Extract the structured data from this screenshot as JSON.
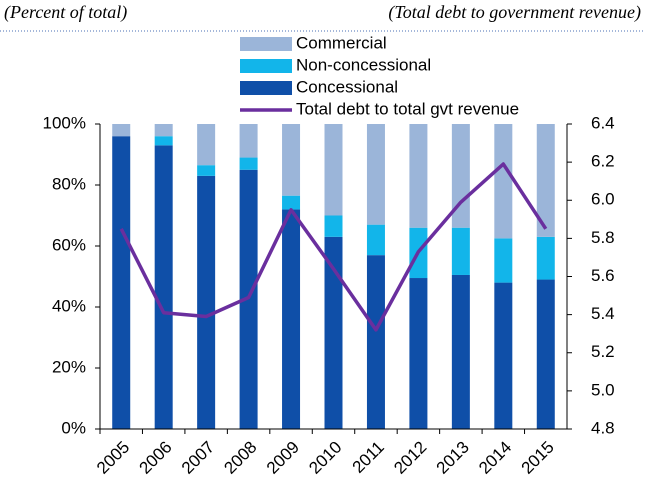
{
  "chart_data": {
    "type": "bar",
    "stacked": true,
    "left_axis_label": "(Percent of total)",
    "right_axis_label": "(Total debt to government revenue)",
    "categories": [
      "2005",
      "2006",
      "2007",
      "2008",
      "2009",
      "2010",
      "2011",
      "2012",
      "2013",
      "2014",
      "2015"
    ],
    "series": [
      {
        "name": "Commercial",
        "color": "#9bb5d9",
        "values": [
          4,
          4,
          13.5,
          11,
          23.5,
          30,
          33,
          34,
          34,
          37.5,
          37
        ]
      },
      {
        "name": "Non-concessional",
        "color": "#12b5ea",
        "values": [
          0,
          3,
          3.5,
          4,
          4.5,
          7,
          10,
          16.5,
          15.5,
          14.5,
          14
        ]
      },
      {
        "name": "Concessional",
        "color": "#0f4fa8",
        "values": [
          96,
          93,
          83,
          85,
          72,
          63,
          57,
          49.5,
          50.5,
          48,
          49
        ]
      },
      {
        "name": "Total debt to total gvt revenue",
        "color": "#6a2f9e",
        "type": "line",
        "axis": "y2",
        "values": [
          5.85,
          5.41,
          5.39,
          5.49,
          5.95,
          5.64,
          5.32,
          5.73,
          5.99,
          6.19,
          5.85
        ]
      }
    ],
    "ylim": [
      0,
      100
    ],
    "yticks": [
      {
        "value": 0,
        "label": "0%"
      },
      {
        "value": 20,
        "label": "20%"
      },
      {
        "value": 40,
        "label": "40%"
      },
      {
        "value": 60,
        "label": "60%"
      },
      {
        "value": 80,
        "label": "80%"
      },
      {
        "value": 100,
        "label": "100%"
      }
    ],
    "y2lim": [
      4.8,
      6.4
    ],
    "y2ticks": [
      4.8,
      {
        "value": 5.0,
        "label": "5.0"
      },
      5.2,
      5.4,
      5.6,
      5.8,
      {
        "value": 6.0,
        "label": "6.0"
      },
      6.2,
      6.4
    ],
    "legend": "top"
  }
}
